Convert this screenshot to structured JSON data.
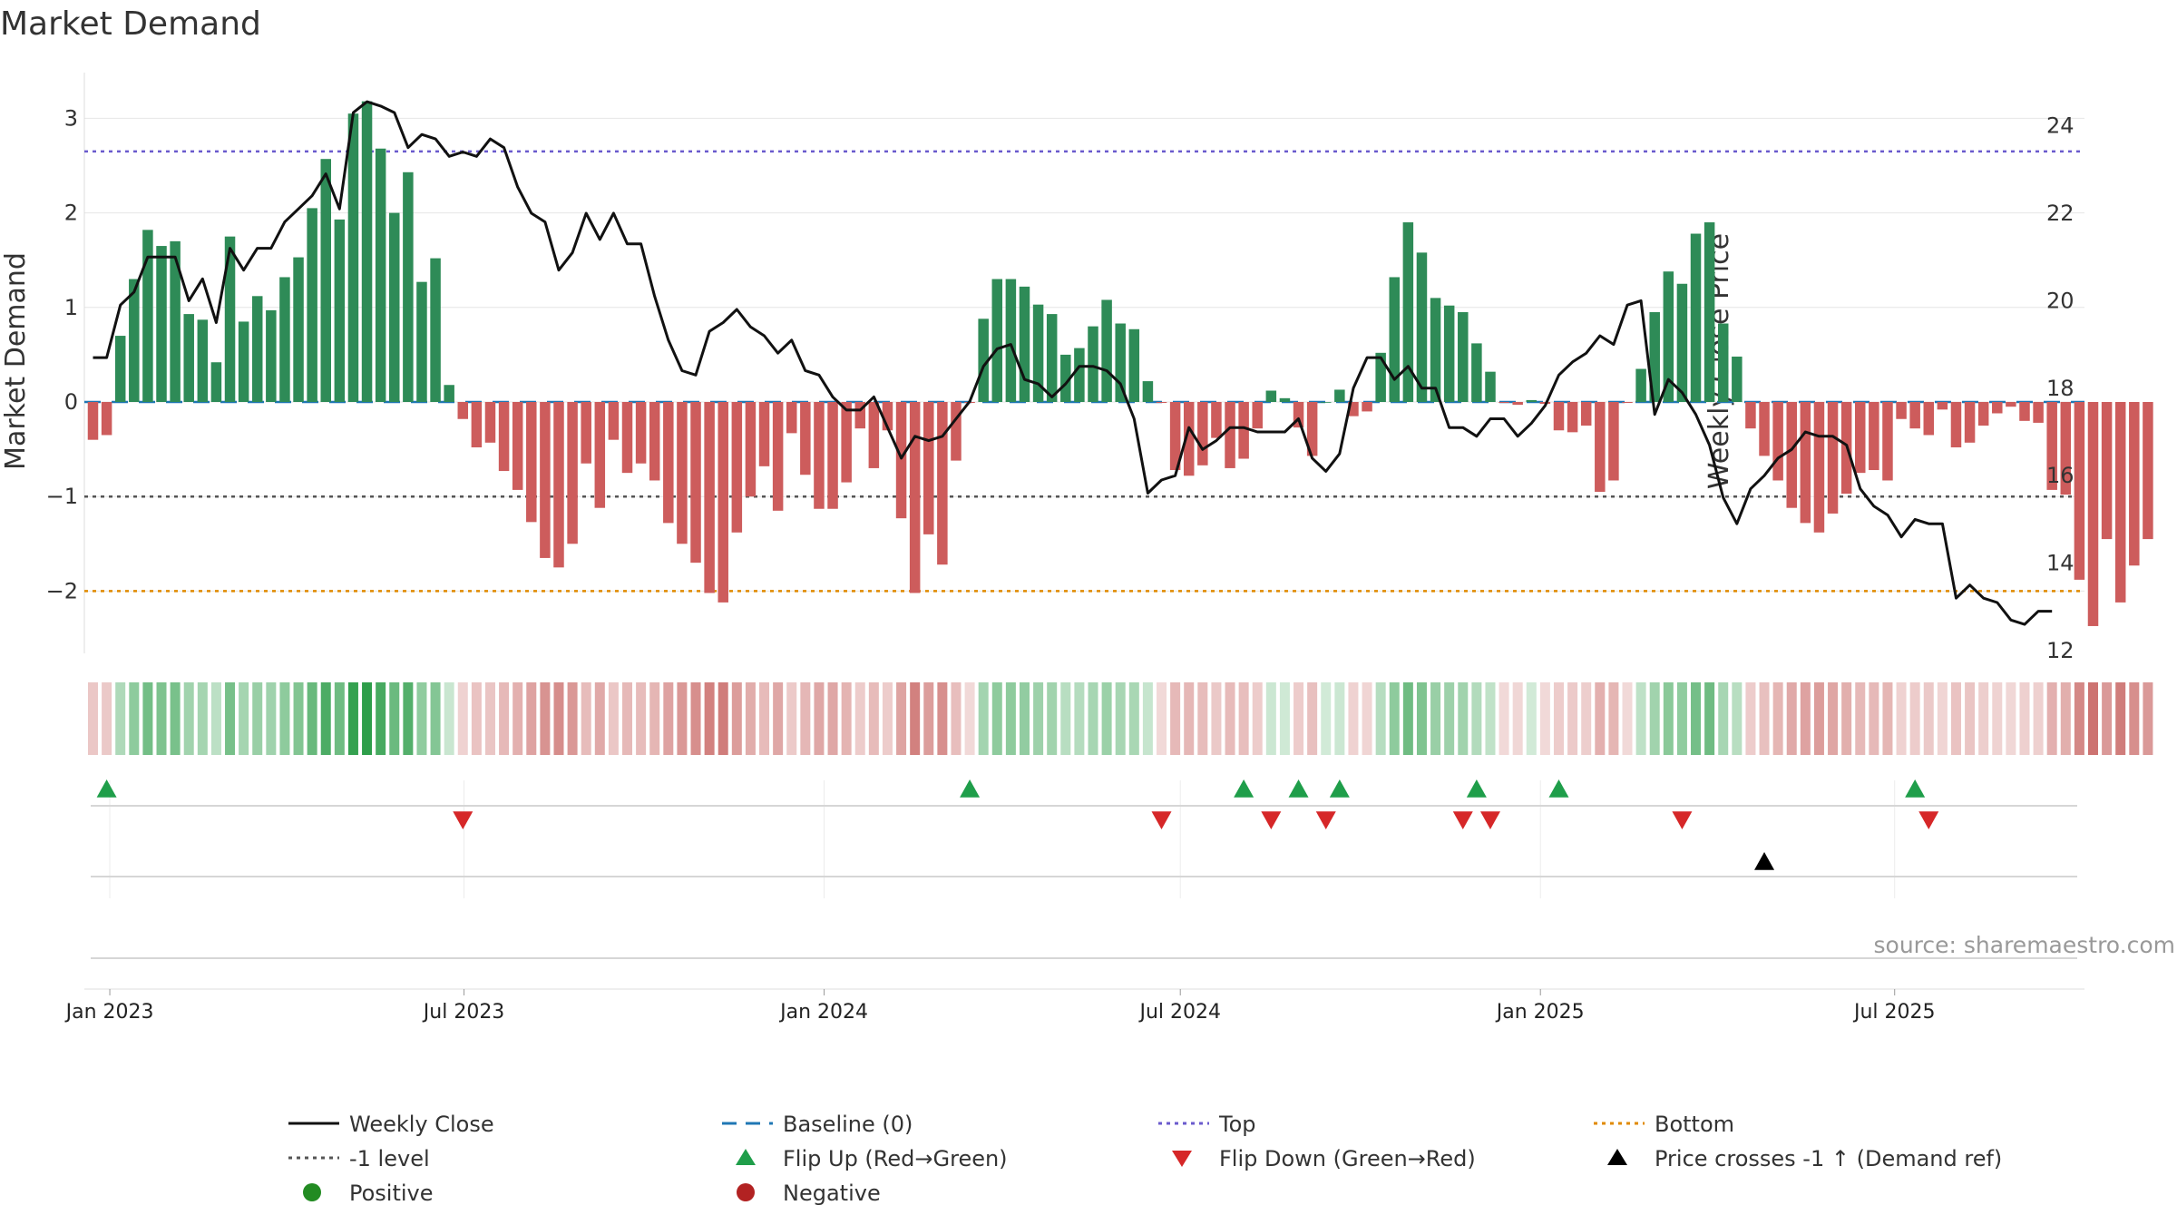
{
  "chart_data": {
    "type": "bar",
    "title": "Market Demand",
    "ylabel": "Market Demand",
    "y2label": "Weekly Close Price",
    "ylim": [
      -2.7,
      3.5
    ],
    "y2lim": [
      12,
      25
    ],
    "yticks": [
      -2,
      -1,
      0,
      1,
      2,
      3
    ],
    "ytick_labels": [
      "−2",
      "−1",
      "0",
      "1",
      "2",
      "3"
    ],
    "y2ticks": [
      12,
      14,
      16,
      18,
      20,
      22,
      24
    ],
    "y2tick_labels": [
      "12",
      "14",
      "16",
      "18",
      "20",
      "22",
      "24"
    ],
    "x_range": [
      "2022-12-19",
      "2025-10-06"
    ],
    "xticks": [
      {
        "date": "2023-01-01",
        "label": "Jan 2023"
      },
      {
        "date": "2023-07-01",
        "label": "Jul 2023"
      },
      {
        "date": "2024-01-01",
        "label": "Jan 2024"
      },
      {
        "date": "2024-07-01",
        "label": "Jul 2024"
      },
      {
        "date": "2025-01-01",
        "label": "Jan 2025"
      },
      {
        "date": "2025-07-01",
        "label": "Jul 2025"
      }
    ],
    "first_week": "2022-12-19",
    "levels": {
      "top": 2.65,
      "bottom": -2.0,
      "minus_one": -1.0,
      "baseline": 0
    },
    "demand": [
      -0.4,
      -0.35,
      0.7,
      1.3,
      1.82,
      1.65,
      1.7,
      0.93,
      0.87,
      0.42,
      1.75,
      0.85,
      1.12,
      0.97,
      1.32,
      1.53,
      2.05,
      2.57,
      1.93,
      3.05,
      3.18,
      2.68,
      2.0,
      2.43,
      1.27,
      1.52,
      0.18,
      -0.18,
      -0.48,
      -0.43,
      -0.73,
      -0.93,
      -1.27,
      -1.65,
      -1.75,
      -1.5,
      -0.65,
      -1.12,
      -0.4,
      -0.75,
      -0.65,
      -0.83,
      -1.28,
      -1.5,
      -1.7,
      -2.02,
      -2.12,
      -1.38,
      -1.0,
      -0.68,
      -1.15,
      -0.33,
      -0.77,
      -1.13,
      -1.13,
      -0.85,
      -0.28,
      -0.7,
      -0.3,
      -1.23,
      -2.02,
      -1.4,
      -1.72,
      -0.62,
      -0.01,
      0.88,
      1.3,
      1.3,
      1.22,
      1.03,
      0.93,
      0.5,
      0.57,
      0.8,
      1.08,
      0.83,
      0.77,
      0.22,
      -0.01,
      -0.72,
      -0.78,
      -0.67,
      -0.38,
      -0.7,
      -0.6,
      -0.28,
      0.12,
      0.04,
      -0.27,
      -0.57,
      0.0,
      0.13,
      -0.15,
      -0.1,
      0.52,
      1.32,
      1.9,
      1.58,
      1.1,
      1.02,
      0.95,
      0.62,
      0.32,
      -0.01,
      -0.03,
      0.02,
      -0.02,
      -0.3,
      -0.32,
      -0.25,
      -0.95,
      -0.83,
      -0.01,
      0.35,
      0.95,
      1.38,
      1.25,
      1.78,
      1.9,
      0.83,
      0.48,
      -0.28,
      -0.57,
      -0.83,
      -1.12,
      -1.28,
      -1.38,
      -1.18,
      -0.97,
      -0.75,
      -0.72,
      -0.83,
      -0.18,
      -0.28,
      -0.35,
      -0.08,
      -0.48,
      -0.43,
      -0.25,
      -0.12,
      -0.05,
      -0.2,
      -0.22,
      -0.93,
      -0.98,
      -1.88,
      -2.37,
      -1.45,
      -2.12,
      -1.73,
      -1.45
    ],
    "weekly_close": [
      18.7,
      18.7,
      19.9,
      20.2,
      21.0,
      21.0,
      21.0,
      20.0,
      20.5,
      19.5,
      21.2,
      20.7,
      21.2,
      21.2,
      21.8,
      22.1,
      22.4,
      22.9,
      22.1,
      24.3,
      24.55,
      24.45,
      24.3,
      23.5,
      23.8,
      23.7,
      23.3,
      23.4,
      23.3,
      23.7,
      23.5,
      22.6,
      22.0,
      21.8,
      20.7,
      21.1,
      22.0,
      21.4,
      22.0,
      21.3,
      21.3,
      20.1,
      19.1,
      18.4,
      18.3,
      19.3,
      19.5,
      19.8,
      19.4,
      19.2,
      18.8,
      19.1,
      18.4,
      18.3,
      17.8,
      17.5,
      17.5,
      17.8,
      17.1,
      16.4,
      16.9,
      16.8,
      16.9,
      17.3,
      17.7,
      18.5,
      18.9,
      19.0,
      18.2,
      18.1,
      17.8,
      18.1,
      18.5,
      18.5,
      18.4,
      18.1,
      17.3,
      15.6,
      15.9,
      16.0,
      17.1,
      16.6,
      16.8,
      17.1,
      17.1,
      17.0,
      17.0,
      17.0,
      17.3,
      16.4,
      16.1,
      16.5,
      18.0,
      18.7,
      18.7,
      18.2,
      18.5,
      18.0,
      18.0,
      17.1,
      17.1,
      16.9,
      17.3,
      17.3,
      16.9,
      17.2,
      17.6,
      18.3,
      18.6,
      18.8,
      19.2,
      19.0,
      19.9,
      20.0,
      17.4,
      18.2,
      17.9,
      17.4,
      16.7,
      15.5,
      14.9,
      15.7,
      16.0,
      16.4,
      16.6,
      17.0,
      16.9,
      16.9,
      16.7,
      15.7,
      15.3,
      15.1,
      14.6,
      15.0,
      14.9,
      14.9,
      13.2,
      13.5,
      13.2,
      13.1,
      12.7,
      12.6,
      12.9,
      12.9
    ],
    "flip_up_weeks": [
      1,
      64,
      84,
      88,
      91,
      101,
      107,
      133
    ],
    "flip_down_weeks": [
      27,
      78,
      86,
      90,
      100,
      102,
      116,
      134
    ],
    "price_cross_weeks": [
      122
    ],
    "source_text": "source: sharemaestro.com",
    "legend": [
      {
        "label": "Weekly Close",
        "symbol": "line",
        "color": "#111111"
      },
      {
        "label": "Baseline (0)",
        "symbol": "dash",
        "color": "#1f77b4"
      },
      {
        "label": "Top",
        "symbol": "dot",
        "color": "#6a5acd"
      },
      {
        "label": "Bottom",
        "symbol": "dot",
        "color": "#e08a00"
      },
      {
        "label": "-1 level",
        "symbol": "dot",
        "color": "#555555"
      },
      {
        "label": "Flip Up (Red→Green)",
        "symbol": "tri-up",
        "color": "#1f9e4a"
      },
      {
        "label": "Flip Down (Green→Red)",
        "symbol": "tri-down",
        "color": "#d62728"
      },
      {
        "label": "Price crosses -1 ↑ (Demand ref)",
        "symbol": "tri-up",
        "color": "#000000"
      },
      {
        "label": "Positive",
        "symbol": "circle",
        "color": "#228b22"
      },
      {
        "label": "Negative",
        "symbol": "circle",
        "color": "#b22222"
      }
    ],
    "colors": {
      "positive_bar": "#2e8b57",
      "negative_bar": "#cd5c5c",
      "heat_positive": "#2e9e4a",
      "heat_negative": "#c0504d",
      "close_line": "#111111",
      "grid": "#e6e6e6"
    }
  }
}
